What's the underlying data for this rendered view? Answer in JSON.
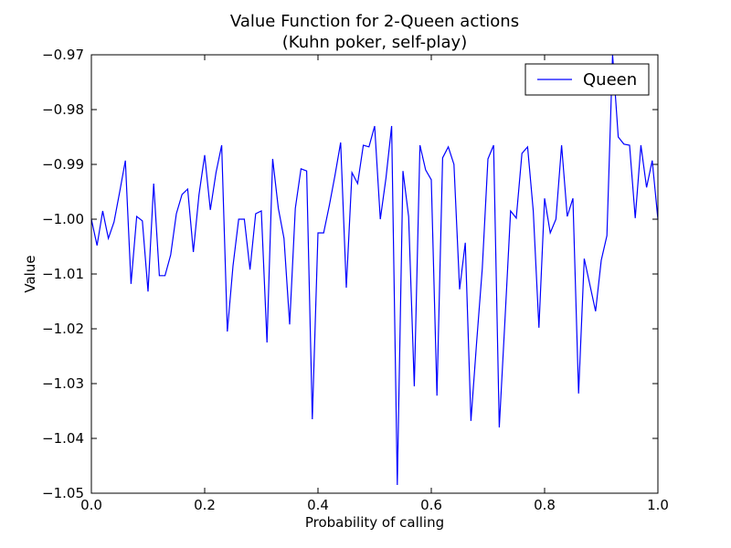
{
  "chart_data": {
    "type": "line",
    "title": "Value Function for 2-Queen actions",
    "subtitle": "(Kuhn poker, self-play)",
    "xlabel": "Probability of calling",
    "ylabel": "Value",
    "xlim": [
      0.0,
      1.0
    ],
    "ylim": [
      -1.05,
      -0.97
    ],
    "xticks": [
      "0.0",
      "0.2",
      "0.4",
      "0.6",
      "0.8",
      "1.0"
    ],
    "yticks": [
      "−0.97",
      "−0.98",
      "−0.99",
      "−1.00",
      "−1.01",
      "−1.02",
      "−1.03",
      "−1.04",
      "−1.05"
    ],
    "grid": false,
    "legend_position": "top-right",
    "colors": {
      "line": "#0000ff",
      "axis": "#000000",
      "background": "#ffffff"
    },
    "series": [
      {
        "name": "Queen",
        "x": [
          0.0,
          0.01,
          0.02,
          0.03,
          0.04,
          0.05,
          0.06,
          0.07,
          0.08,
          0.09,
          0.1,
          0.11,
          0.12,
          0.13,
          0.14,
          0.15,
          0.16,
          0.17,
          0.18,
          0.19,
          0.2,
          0.21,
          0.22,
          0.23,
          0.24,
          0.25,
          0.26,
          0.27,
          0.28,
          0.29,
          0.3,
          0.31,
          0.32,
          0.33,
          0.34,
          0.35,
          0.36,
          0.37,
          0.38,
          0.39,
          0.4,
          0.41,
          0.42,
          0.43,
          0.44,
          0.45,
          0.46,
          0.47,
          0.48,
          0.49,
          0.5,
          0.51,
          0.52,
          0.53,
          0.54,
          0.55,
          0.56,
          0.57,
          0.58,
          0.59,
          0.6,
          0.61,
          0.62,
          0.63,
          0.64,
          0.65,
          0.66,
          0.67,
          0.68,
          0.69,
          0.7,
          0.71,
          0.72,
          0.73,
          0.74,
          0.75,
          0.76,
          0.77,
          0.78,
          0.79,
          0.8,
          0.81,
          0.82,
          0.83,
          0.84,
          0.85,
          0.86,
          0.87,
          0.88,
          0.89,
          0.9,
          0.91,
          0.92,
          0.93,
          0.94,
          0.95,
          0.96,
          0.97,
          0.98,
          0.99,
          1.0
        ],
        "values": [
          -1.0,
          -1.0048,
          -0.9985,
          -1.0035,
          -1.0005,
          -0.995,
          -0.9893,
          -1.0118,
          -0.9995,
          -1.0003,
          -1.0132,
          -0.9935,
          -1.0103,
          -1.0103,
          -1.0065,
          -0.999,
          -0.9955,
          -0.9945,
          -1.006,
          -0.9955,
          -0.9883,
          -0.9983,
          -0.9915,
          -0.9865,
          -1.0205,
          -1.0085,
          -1.0,
          -1.0,
          -1.0092,
          -0.999,
          -0.9985,
          -1.0225,
          -0.989,
          -0.998,
          -1.0035,
          -1.0192,
          -0.998,
          -0.9908,
          -0.9912,
          -1.0365,
          -1.0025,
          -1.0025,
          -0.9975,
          -0.992,
          -0.986,
          -1.0125,
          -0.9915,
          -0.9935,
          -0.9865,
          -0.9868,
          -0.983,
          -1.0,
          -0.9925,
          -0.983,
          -1.0485,
          -0.9912,
          -0.9995,
          -1.0305,
          -0.9865,
          -0.991,
          -0.9928,
          -1.0322,
          -0.9888,
          -0.9868,
          -0.99,
          -1.0128,
          -1.0043,
          -1.0368,
          -1.0225,
          -1.009,
          -0.989,
          -0.9865,
          -1.038,
          -1.0185,
          -0.9985,
          -0.9998,
          -0.988,
          -0.9868,
          -0.9985,
          -1.0198,
          -0.9962,
          -1.0025,
          -1.0,
          -0.9865,
          -0.9995,
          -0.9962,
          -1.0318,
          -1.0072,
          -1.012,
          -1.0168,
          -1.0075,
          -1.003,
          -0.97,
          -0.985,
          -0.9863,
          -0.9865,
          -0.9998,
          -0.9865,
          -0.9942,
          -0.9893,
          -1.0
        ]
      }
    ]
  }
}
